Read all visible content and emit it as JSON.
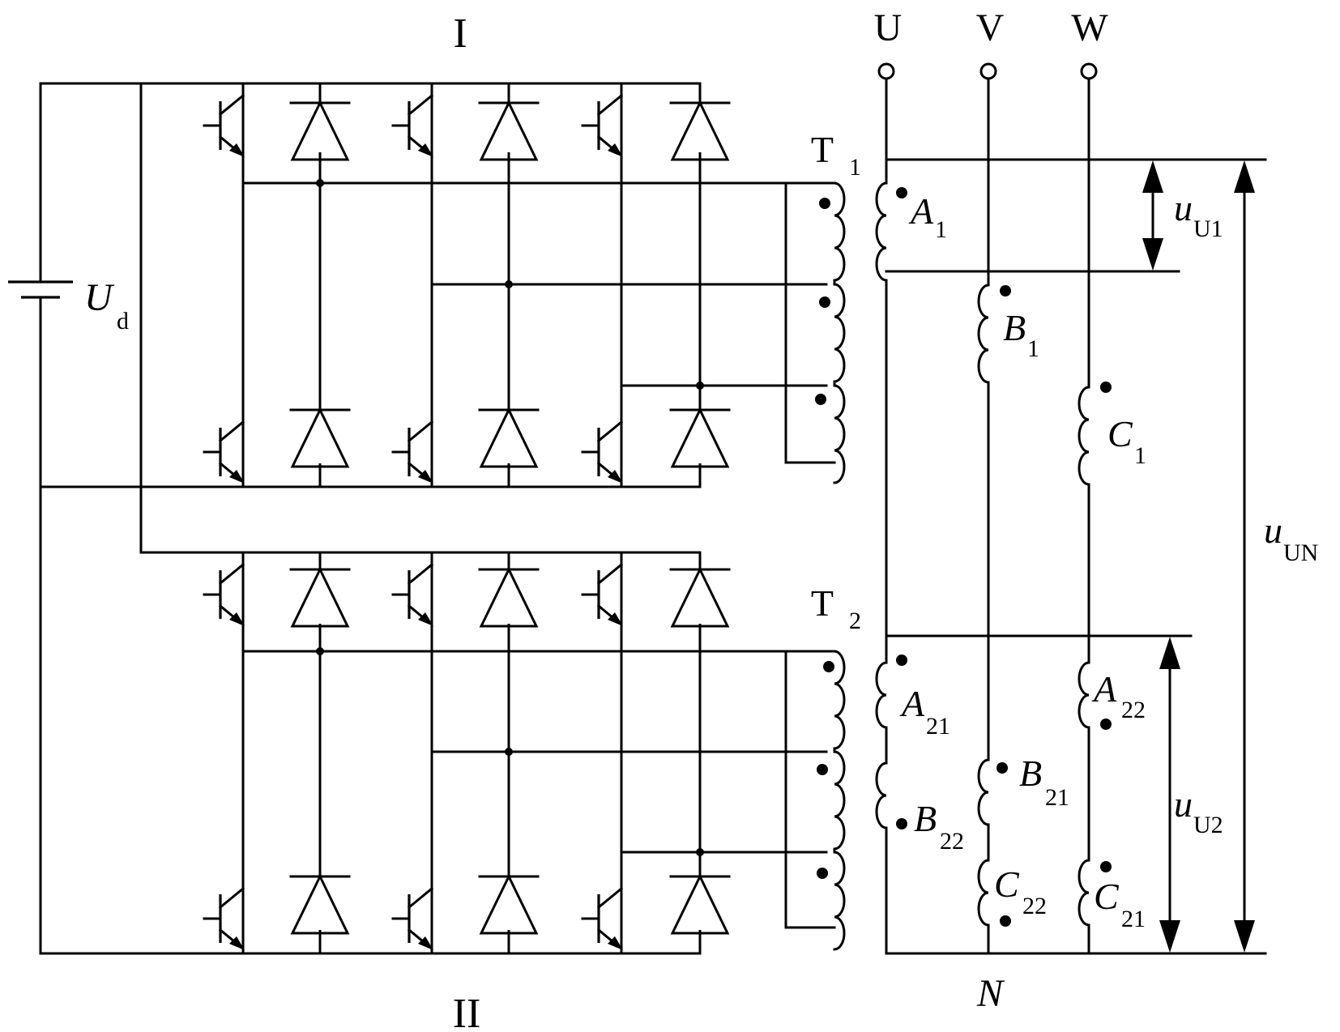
{
  "bridges": {
    "upper_label": "I",
    "lower_label": "II"
  },
  "source": {
    "label_main": "U",
    "label_sub": "d"
  },
  "terminals": {
    "u": "U",
    "v": "V",
    "w": "W",
    "neutral": "N"
  },
  "transformers": {
    "t1_main": "T",
    "t1_sub": "1",
    "t2_main": "T",
    "t2_sub": "2"
  },
  "windings": {
    "a1_main": "A",
    "a1_sub": "1",
    "b1_main": "B",
    "b1_sub": "1",
    "c1_main": "C",
    "c1_sub": "1",
    "a21_main": "A",
    "a21_sub": "21",
    "b22_main": "B",
    "b22_sub": "22",
    "a22_main": "A",
    "a22_sub": "22",
    "b21_main": "B",
    "b21_sub": "21",
    "c22_main": "C",
    "c22_sub": "22",
    "c21_main": "C",
    "c21_sub": "21"
  },
  "voltages": {
    "uu1_main": "u",
    "uu1_sub": "U1",
    "uu2_main": "u",
    "uu2_sub": "U2",
    "uun_main": "u",
    "uun_sub": "UN"
  }
}
